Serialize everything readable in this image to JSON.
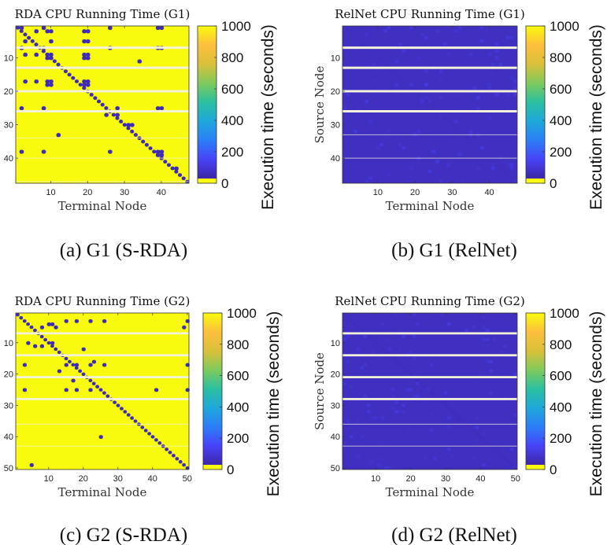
{
  "colors": {
    "colormap": [
      "#3e26a8",
      "#4743f8",
      "#2c7ef7",
      "#1fa8db",
      "#2bbfa0",
      "#7fca5c",
      "#dac03a",
      "#fdbf3d",
      "#f9fb0e"
    ],
    "gap_row": "#f4f2d8"
  },
  "chart_data": [
    {
      "type": "heatmap",
      "id": "a",
      "title": "RDA CPU Running Time (G1)",
      "xlabel": "Terminal Node",
      "ylabel": "",
      "caption": "(a) G1 (S-RDA)",
      "n": 47,
      "xticks": [
        10,
        20,
        30,
        40
      ],
      "yticks": [
        10,
        20,
        30,
        40
      ],
      "colorbar": {
        "label": "Execution time (seconds)",
        "range": [
          0,
          1000
        ],
        "ticks": [
          0,
          200,
          400,
          600,
          800,
          1000
        ]
      },
      "background_value": 1000,
      "diagonal_value": 20,
      "gap_rows": [
        7,
        13,
        20,
        26
      ],
      "thin_gap_rows": [
        34,
        40,
        47
      ],
      "low_cells": [
        [
          1,
          2
        ],
        [
          1,
          8
        ],
        [
          1,
          26
        ],
        [
          1,
          39
        ],
        [
          1,
          40
        ],
        [
          2,
          6
        ],
        [
          2,
          9
        ],
        [
          2,
          10
        ],
        [
          2,
          19
        ],
        [
          2,
          20
        ],
        [
          5,
          3
        ],
        [
          5,
          10
        ],
        [
          5,
          19
        ],
        [
          5,
          20
        ],
        [
          7,
          2
        ],
        [
          7,
          8
        ],
        [
          7,
          26
        ],
        [
          7,
          39
        ],
        [
          7,
          40
        ],
        [
          9,
          3
        ],
        [
          9,
          6
        ],
        [
          9,
          9
        ],
        [
          9,
          10
        ],
        [
          9,
          19
        ],
        [
          9,
          20
        ],
        [
          10,
          9
        ],
        [
          10,
          10
        ],
        [
          10,
          19
        ],
        [
          10,
          20
        ],
        [
          11,
          34
        ],
        [
          17,
          3
        ],
        [
          17,
          6
        ],
        [
          17,
          9
        ],
        [
          17,
          10
        ],
        [
          17,
          19
        ],
        [
          17,
          20
        ],
        [
          18,
          9
        ],
        [
          18,
          10
        ],
        [
          18,
          19
        ],
        [
          18,
          20
        ],
        [
          25,
          2
        ],
        [
          25,
          8
        ],
        [
          25,
          28
        ],
        [
          25,
          39
        ],
        [
          25,
          40
        ],
        [
          27,
          25
        ],
        [
          27,
          28
        ],
        [
          30,
          31
        ],
        [
          30,
          32
        ],
        [
          33,
          12
        ],
        [
          38,
          2
        ],
        [
          38,
          8
        ],
        [
          38,
          26
        ],
        [
          38,
          39
        ],
        [
          38,
          40
        ],
        [
          39,
          39
        ],
        [
          39,
          40
        ],
        [
          43,
          44
        ]
      ]
    },
    {
      "type": "heatmap",
      "id": "b",
      "title": "RelNet CPU Running Time (G1)",
      "xlabel": "Terminal Node",
      "ylabel": "Source Node",
      "caption": "(b) G1 (RelNet)",
      "n": 47,
      "xticks": [
        10,
        20,
        30,
        40
      ],
      "yticks": [
        10,
        20,
        30,
        40
      ],
      "colorbar": {
        "label": "Execution time (seconds)",
        "range": [
          0,
          1000
        ],
        "ticks": [
          0,
          200,
          400,
          600,
          800,
          1000
        ]
      },
      "background_value": 40,
      "diagonal_value": 30,
      "gap_rows": [
        7,
        13,
        20,
        26
      ],
      "thin_gap_rows": [
        33,
        40
      ],
      "low_cells": []
    },
    {
      "type": "heatmap",
      "id": "c",
      "title": "RDA CPU Running Time (G2)",
      "xlabel": "Terminal Node",
      "ylabel": "",
      "caption": "(c) G2 (S-RDA)",
      "n": 50,
      "xticks": [
        10,
        20,
        30,
        40,
        50
      ],
      "yticks": [
        10,
        20,
        30,
        40,
        50
      ],
      "colorbar": {
        "label": "Execution time (seconds)",
        "range": [
          0,
          1000
        ],
        "ticks": [
          0,
          200,
          400,
          600,
          800,
          1000
        ]
      },
      "background_value": 1000,
      "diagonal_value": 20,
      "gap_rows": [
        7,
        14,
        21,
        28
      ],
      "thin_gap_rows": [
        36,
        43
      ],
      "low_cells": [
        [
          3,
          15
        ],
        [
          3,
          18
        ],
        [
          3,
          22
        ],
        [
          3,
          26
        ],
        [
          3,
          50
        ],
        [
          4,
          10
        ],
        [
          4,
          11
        ],
        [
          5,
          8
        ],
        [
          5,
          12
        ],
        [
          5,
          49
        ],
        [
          10,
          4
        ],
        [
          10,
          11
        ],
        [
          11,
          6
        ],
        [
          11,
          8
        ],
        [
          12,
          20
        ],
        [
          17,
          3
        ],
        [
          17,
          15
        ],
        [
          17,
          18
        ],
        [
          17,
          22
        ],
        [
          17,
          26
        ],
        [
          17,
          50
        ],
        [
          16,
          23
        ],
        [
          19,
          13
        ],
        [
          22,
          17
        ],
        [
          25,
          3
        ],
        [
          25,
          15
        ],
        [
          25,
          18
        ],
        [
          25,
          22
        ],
        [
          25,
          41
        ],
        [
          25,
          50
        ],
        [
          40,
          25
        ],
        [
          49,
          5
        ]
      ]
    },
    {
      "type": "heatmap",
      "id": "d",
      "title": "RelNet CPU Running Time (G2)",
      "xlabel": "Terminal Node",
      "ylabel": "Source Node",
      "caption": "(d) G2 (RelNet)",
      "n": 50,
      "xticks": [
        10,
        20,
        30,
        40,
        50
      ],
      "yticks": [
        10,
        20,
        30,
        40,
        50
      ],
      "colorbar": {
        "label": "Execution time (seconds)",
        "range": [
          0,
          1000
        ],
        "ticks": [
          0,
          200,
          400,
          600,
          800,
          1000
        ]
      },
      "background_value": 40,
      "diagonal_value": 25,
      "gap_rows": [
        7,
        14,
        21,
        28
      ],
      "thin_gap_rows": [
        36,
        43
      ],
      "low_cells": []
    }
  ]
}
